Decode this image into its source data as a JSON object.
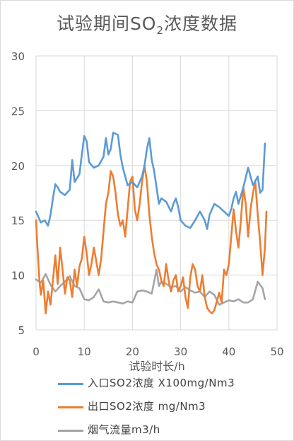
{
  "chart_data": {
    "type": "line",
    "title_main": "试验期间SO",
    "title_sub": "2",
    "title_tail": "浓度数据",
    "xlabel": "试验时长/h",
    "ylabel": "",
    "xlim": [
      0,
      50
    ],
    "ylim": [
      5,
      30
    ],
    "xticks": [
      "0",
      "10",
      "20",
      "30",
      "40",
      "50"
    ],
    "yticks": [
      "5",
      "10",
      "15",
      "20",
      "25",
      "30"
    ],
    "grid": true,
    "legend_position": "bottom",
    "series": [
      {
        "name": "入口SO2浓度 X100mg/Nm3",
        "color": "#5B9BD5",
        "points": [
          [
            0,
            15.8
          ],
          [
            0.5,
            15.3
          ],
          [
            1,
            14.8
          ],
          [
            1.8,
            15.0
          ],
          [
            2.5,
            14.5
          ],
          [
            3,
            15.5
          ],
          [
            3.5,
            17.0
          ],
          [
            4,
            18.3
          ],
          [
            4.5,
            18.0
          ],
          [
            5,
            17.6
          ],
          [
            6,
            17.3
          ],
          [
            7,
            17.8
          ],
          [
            7.5,
            20.5
          ],
          [
            8,
            18.5
          ],
          [
            9,
            19.2
          ],
          [
            9.5,
            21.0
          ],
          [
            10,
            22.7
          ],
          [
            10.5,
            22.2
          ],
          [
            11,
            20.3
          ],
          [
            12,
            19.8
          ],
          [
            13,
            20.0
          ],
          [
            14,
            20.8
          ],
          [
            14.5,
            22.5
          ],
          [
            15,
            21.0
          ],
          [
            15.5,
            21.5
          ],
          [
            16,
            23.0
          ],
          [
            17,
            22.8
          ],
          [
            17.5,
            21.0
          ],
          [
            18,
            19.8
          ],
          [
            19,
            18.2
          ],
          [
            20,
            18.5
          ],
          [
            21,
            18.0
          ],
          [
            22,
            19.0
          ],
          [
            22.5,
            20.0
          ],
          [
            23,
            21.5
          ],
          [
            23.5,
            22.5
          ],
          [
            24,
            20.5
          ],
          [
            24.5,
            19.5
          ],
          [
            25,
            18.0
          ],
          [
            25.5,
            16.5
          ],
          [
            26,
            17.0
          ],
          [
            27,
            16.7
          ],
          [
            28,
            15.8
          ],
          [
            28.5,
            16.5
          ],
          [
            29,
            17.0
          ],
          [
            29.5,
            16.2
          ],
          [
            30,
            15.0
          ],
          [
            31,
            14.5
          ],
          [
            32,
            14.3
          ],
          [
            33,
            15.0
          ],
          [
            34,
            15.8
          ],
          [
            35,
            15.0
          ],
          [
            35.5,
            14.2
          ],
          [
            36,
            15.5
          ],
          [
            37,
            16.5
          ],
          [
            38,
            16.2
          ],
          [
            39,
            15.8
          ],
          [
            40,
            15.4
          ],
          [
            40.5,
            16.0
          ],
          [
            41,
            17.0
          ],
          [
            41.5,
            17.6
          ],
          [
            42,
            16.5
          ],
          [
            43,
            18.0
          ],
          [
            44,
            19.8
          ],
          [
            45,
            18.2
          ],
          [
            46,
            19.0
          ],
          [
            46.5,
            17.5
          ],
          [
            47,
            17.8
          ],
          [
            47.5,
            22.0
          ]
        ]
      },
      {
        "name": "出口SO2浓度 mg/Nm3",
        "color": "#ED7D31",
        "points": [
          [
            0,
            15.0
          ],
          [
            0.3,
            12.5
          ],
          [
            0.7,
            9.5
          ],
          [
            1,
            8.2
          ],
          [
            1.5,
            9.5
          ],
          [
            2,
            6.5
          ],
          [
            2.5,
            8.5
          ],
          [
            3,
            7.3
          ],
          [
            3.5,
            9.5
          ],
          [
            4,
            11.8
          ],
          [
            4.5,
            9.2
          ],
          [
            5,
            12.5
          ],
          [
            5.5,
            10.5
          ],
          [
            6,
            8.3
          ],
          [
            6.5,
            9.8
          ],
          [
            7,
            9.5
          ],
          [
            7.5,
            8.0
          ],
          [
            8,
            10.5
          ],
          [
            8.5,
            9.0
          ],
          [
            9,
            10.8
          ],
          [
            9.5,
            11.5
          ],
          [
            10,
            13.5
          ],
          [
            10.5,
            12.0
          ],
          [
            11,
            10.0
          ],
          [
            11.5,
            11.0
          ],
          [
            12,
            12.5
          ],
          [
            13,
            10.0
          ],
          [
            13.5,
            11.5
          ],
          [
            14,
            14.0
          ],
          [
            14.5,
            16.5
          ],
          [
            15,
            17.5
          ],
          [
            15.5,
            19.5
          ],
          [
            16,
            19.0
          ],
          [
            16.5,
            17.5
          ],
          [
            17,
            15.5
          ],
          [
            17.5,
            14.5
          ],
          [
            18,
            15.0
          ],
          [
            18.5,
            13.5
          ],
          [
            19,
            16.0
          ],
          [
            19.5,
            18.5
          ],
          [
            20,
            19.0
          ],
          [
            20.5,
            16.0
          ],
          [
            21,
            15.0
          ],
          [
            21.5,
            16.5
          ],
          [
            22,
            18.5
          ],
          [
            22.5,
            20.0
          ],
          [
            23,
            18.5
          ],
          [
            23.5,
            15.5
          ],
          [
            24,
            13.5
          ],
          [
            24.5,
            12.0
          ],
          [
            25,
            11.0
          ],
          [
            25.5,
            10.5
          ],
          [
            26,
            9.5
          ],
          [
            26.5,
            9.0
          ],
          [
            27,
            11.0
          ],
          [
            27.5,
            9.5
          ],
          [
            28,
            8.5
          ],
          [
            28.5,
            9.5
          ],
          [
            29,
            10.0
          ],
          [
            29.5,
            8.5
          ],
          [
            30,
            9.0
          ],
          [
            30.5,
            9.8
          ],
          [
            31,
            8.0
          ],
          [
            31.5,
            7.0
          ],
          [
            32,
            9.8
          ],
          [
            32.5,
            11.0
          ],
          [
            33,
            10.5
          ],
          [
            33.5,
            9.0
          ],
          [
            34,
            8.5
          ],
          [
            34.5,
            10.0
          ],
          [
            35,
            8.0
          ],
          [
            35.5,
            7.0
          ],
          [
            36,
            6.7
          ],
          [
            36.5,
            6.5
          ],
          [
            37,
            6.8
          ],
          [
            37.5,
            7.6
          ],
          [
            38,
            8.4
          ],
          [
            38.5,
            7.5
          ],
          [
            39,
            10.5
          ],
          [
            39.5,
            10.0
          ],
          [
            40,
            11.0
          ],
          [
            40.5,
            13.5
          ],
          [
            41,
            16.0
          ],
          [
            41.5,
            14.0
          ],
          [
            42,
            12.5
          ],
          [
            42.5,
            15.0
          ],
          [
            43,
            18.0
          ],
          [
            43.5,
            16.5
          ],
          [
            44,
            13.5
          ],
          [
            44.5,
            16.0
          ],
          [
            45,
            17.5
          ],
          [
            45.5,
            18.5
          ],
          [
            46,
            15.5
          ],
          [
            46.5,
            13.0
          ],
          [
            47,
            10.0
          ],
          [
            47.5,
            12.5
          ],
          [
            47.8,
            15.8
          ]
        ]
      },
      {
        "name": "烟气流量m3/h",
        "color": "#A5A5A5",
        "points": [
          [
            0,
            9.6
          ],
          [
            1,
            9.3
          ],
          [
            2,
            10.1
          ],
          [
            3,
            9.1
          ],
          [
            4,
            8.5
          ],
          [
            5,
            9.0
          ],
          [
            6,
            9.4
          ],
          [
            7,
            9.9
          ],
          [
            8,
            9.0
          ],
          [
            9,
            8.8
          ],
          [
            10,
            7.8
          ],
          [
            11,
            7.7
          ],
          [
            12,
            8.0
          ],
          [
            13,
            8.7
          ],
          [
            14,
            7.6
          ],
          [
            15,
            7.5
          ],
          [
            16,
            7.6
          ],
          [
            17,
            7.5
          ],
          [
            18,
            7.4
          ],
          [
            19,
            7.6
          ],
          [
            20,
            7.5
          ],
          [
            21,
            8.5
          ],
          [
            22,
            8.6
          ],
          [
            23,
            8.5
          ],
          [
            24,
            8.3
          ],
          [
            25,
            10.5
          ],
          [
            25.5,
            9.0
          ],
          [
            26,
            9.4
          ],
          [
            27,
            9.2
          ],
          [
            28,
            8.9
          ],
          [
            29,
            9.0
          ],
          [
            30,
            8.5
          ],
          [
            31,
            8.9
          ],
          [
            32,
            8.6
          ],
          [
            33,
            8.4
          ],
          [
            34,
            8.5
          ],
          [
            35,
            8.0
          ],
          [
            36,
            8.5
          ],
          [
            37,
            8.2
          ],
          [
            38,
            7.3
          ],
          [
            39,
            7.5
          ],
          [
            40,
            7.7
          ],
          [
            41,
            7.6
          ],
          [
            42,
            7.8
          ],
          [
            43,
            7.5
          ],
          [
            44,
            7.5
          ],
          [
            45,
            7.8
          ],
          [
            46,
            9.4
          ],
          [
            47,
            8.8
          ],
          [
            47.5,
            7.8
          ]
        ]
      }
    ]
  }
}
